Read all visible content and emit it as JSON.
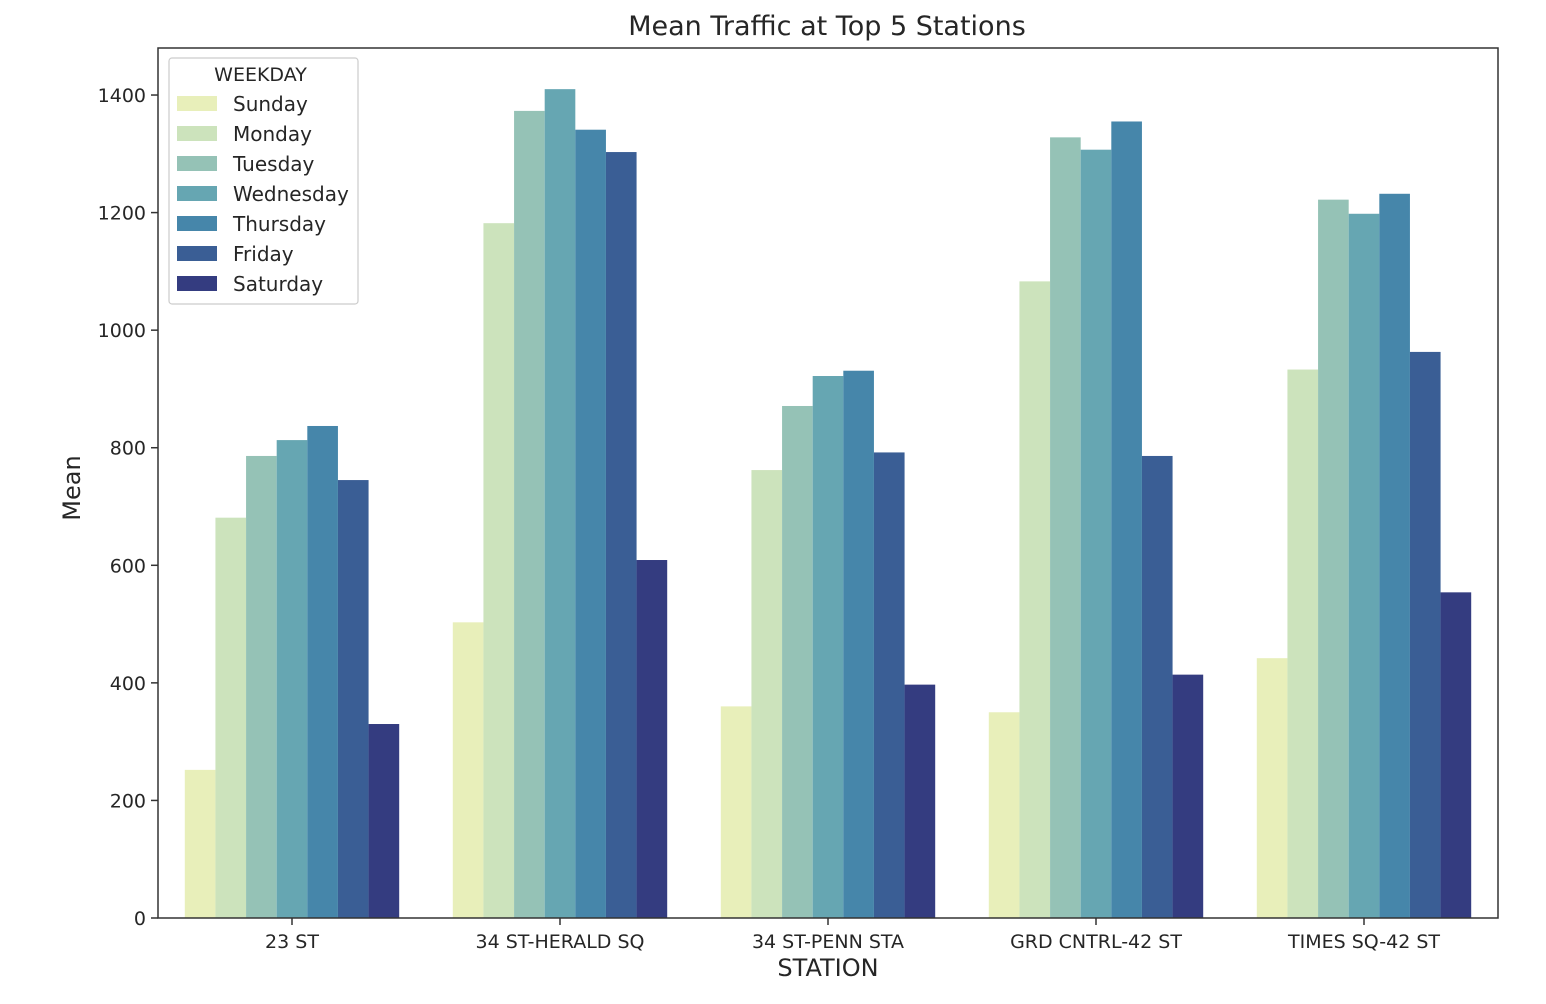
{
  "chart_data": {
    "type": "bar",
    "title": "Mean Traffic at Top 5 Stations",
    "xlabel": "STATION",
    "ylabel": "Mean",
    "ylim": [
      0,
      1480
    ],
    "yticks": [
      0,
      200,
      400,
      600,
      800,
      1000,
      1200,
      1400
    ],
    "grid": false,
    "legend": {
      "title": "WEEKDAY",
      "placement": "top-left"
    },
    "categories": [
      "23 ST",
      "34 ST-HERALD SQ",
      "34 ST-PENN STA",
      "GRD CNTRL-42 ST",
      "TIMES SQ-42 ST"
    ],
    "series": [
      {
        "name": "Sunday",
        "color": "#e8efba",
        "values": [
          252,
          503,
          360,
          350,
          442
        ]
      },
      {
        "name": "Monday",
        "color": "#cce3bc",
        "values": [
          681,
          1182,
          762,
          1083,
          933
        ]
      },
      {
        "name": "Tuesday",
        "color": "#95c2b6",
        "values": [
          786,
          1373,
          871,
          1328,
          1222
        ]
      },
      {
        "name": "Wednesday",
        "color": "#66a6b2",
        "values": [
          813,
          1410,
          922,
          1307,
          1198
        ]
      },
      {
        "name": "Thursday",
        "color": "#4686aa",
        "values": [
          837,
          1341,
          931,
          1355,
          1232
        ]
      },
      {
        "name": "Friday",
        "color": "#3a5e95",
        "values": [
          745,
          1303,
          792,
          786,
          963
        ]
      },
      {
        "name": "Saturday",
        "color": "#343c80",
        "values": [
          330,
          609,
          397,
          414,
          554
        ]
      }
    ]
  }
}
